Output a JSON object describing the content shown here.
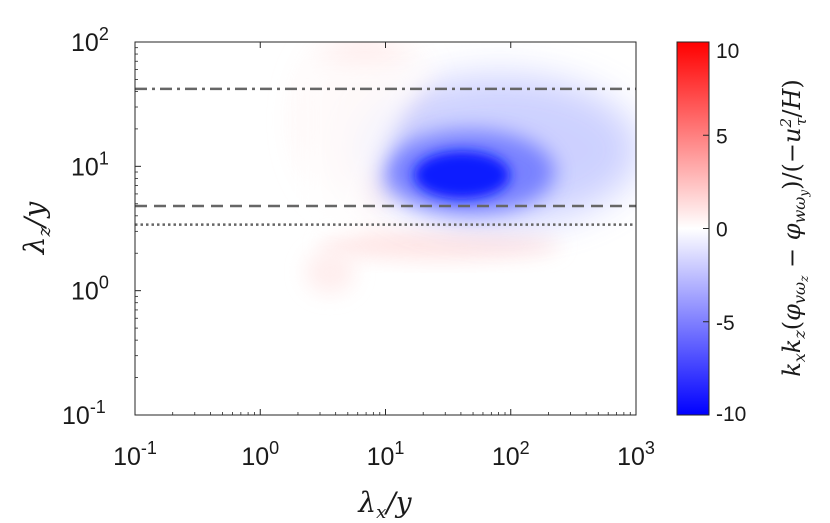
{
  "chart_data": {
    "type": "heatmap",
    "title": "",
    "xlabel": "λx/y",
    "ylabel": "λz/y",
    "colorbar_label": "kxkz(φvωz − φwωy)/(−uτ²/H)",
    "x_scale": "log",
    "y_scale": "log",
    "xlim": [
      0.1,
      1000
    ],
    "ylim": [
      0.1,
      100
    ],
    "x_ticks": [
      {
        "value": 0.1,
        "base": "10",
        "exp": "-1"
      },
      {
        "value": 1,
        "base": "10",
        "exp": "0"
      },
      {
        "value": 10,
        "base": "10",
        "exp": "1"
      },
      {
        "value": 100,
        "base": "10",
        "exp": "2"
      },
      {
        "value": 1000,
        "base": "10",
        "exp": "3"
      }
    ],
    "y_ticks": [
      {
        "value": 0.1,
        "base": "10",
        "exp": "-1"
      },
      {
        "value": 1,
        "base": "10",
        "exp": "0"
      },
      {
        "value": 10,
        "base": "10",
        "exp": "1"
      },
      {
        "value": 100,
        "base": "10",
        "exp": "2"
      }
    ],
    "colorbar": {
      "range": [
        -10,
        10
      ],
      "ticks": [
        "10",
        "5",
        "0",
        "-5",
        "-10"
      ],
      "tick_values": [
        10,
        5,
        0,
        -5,
        -10
      ],
      "colormap": "blue-white-red",
      "low_color": "#0000ff",
      "zero_color": "#ffffff",
      "high_color": "#ff0000"
    },
    "reference_lines": [
      {
        "y": 42,
        "style": "dash-dot",
        "color": "#666666"
      },
      {
        "y": 4.8,
        "style": "dashed",
        "color": "#666666"
      },
      {
        "y": 3.4,
        "style": "dotted",
        "color": "#666666"
      }
    ],
    "features": [
      {
        "kind": "negative-peak",
        "x": 45,
        "y": 8.5,
        "value": -10
      },
      {
        "kind": "positive-band",
        "x_range": [
          2,
          8
        ],
        "y_range": [
          5,
          60
        ],
        "value": 1
      },
      {
        "kind": "positive-band",
        "x_range": [
          4,
          60
        ],
        "y_range": [
          2,
          3.3
        ],
        "value": 1
      }
    ],
    "grid": false
  }
}
